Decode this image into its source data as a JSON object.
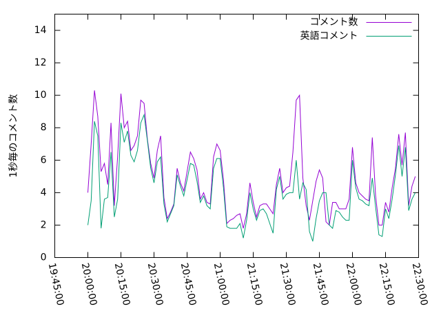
{
  "chart_data": {
    "type": "line",
    "ylabel": "1秒毎のコメント数",
    "x": [
      "20:00:00",
      "20:01:30",
      "20:03:00",
      "20:04:30",
      "20:06:00",
      "20:07:30",
      "20:09:00",
      "20:10:30",
      "20:12:00",
      "20:13:30",
      "20:15:00",
      "20:16:30",
      "20:18:00",
      "20:19:30",
      "20:21:00",
      "20:22:30",
      "20:24:00",
      "20:25:30",
      "20:27:00",
      "20:28:30",
      "20:30:00",
      "20:31:30",
      "20:33:00",
      "20:34:30",
      "20:36:00",
      "20:37:30",
      "20:39:00",
      "20:40:30",
      "20:42:00",
      "20:43:30",
      "20:45:00",
      "20:46:30",
      "20:48:00",
      "20:49:30",
      "20:51:00",
      "20:52:30",
      "20:54:00",
      "20:55:30",
      "20:57:00",
      "20:58:30",
      "21:00:00",
      "21:01:30",
      "21:03:00",
      "21:04:30",
      "21:06:00",
      "21:07:30",
      "21:09:00",
      "21:10:30",
      "21:12:00",
      "21:13:30",
      "21:15:00",
      "21:16:30",
      "21:18:00",
      "21:19:30",
      "21:21:00",
      "21:22:30",
      "21:24:00",
      "21:25:30",
      "21:27:00",
      "21:28:30",
      "21:30:00",
      "21:31:30",
      "21:33:00",
      "21:34:30",
      "21:36:00",
      "21:37:30",
      "21:39:00",
      "21:40:30",
      "21:42:00",
      "21:43:30",
      "21:45:00",
      "21:46:30",
      "21:48:00",
      "21:49:30",
      "21:51:00",
      "21:52:30",
      "21:54:00",
      "21:55:30",
      "21:57:00",
      "21:58:30",
      "22:00:00",
      "22:01:30",
      "22:03:00",
      "22:04:30",
      "22:06:00",
      "22:07:30",
      "22:09:00",
      "22:10:30",
      "22:12:00",
      "22:13:30",
      "22:15:00",
      "22:16:30",
      "22:18:00",
      "22:19:30",
      "22:21:00",
      "22:22:30",
      "22:24:00",
      "22:25:30",
      "22:27:00",
      "22:28:30"
    ],
    "series": [
      {
        "name": "コメント数",
        "color": "#9400d3",
        "values": [
          4.0,
          7.0,
          10.3,
          8.7,
          5.3,
          5.8,
          4.5,
          8.3,
          3.2,
          6.2,
          10.1,
          8.0,
          8.4,
          6.6,
          6.9,
          7.5,
          9.7,
          9.5,
          7.3,
          5.8,
          4.9,
          6.6,
          7.5,
          3.7,
          2.4,
          2.8,
          3.3,
          5.5,
          4.6,
          4.1,
          5.3,
          6.5,
          6.1,
          5.4,
          3.6,
          4.0,
          3.4,
          3.3,
          6.2,
          7.0,
          6.6,
          4.8,
          2.1,
          2.3,
          2.4,
          2.6,
          2.7,
          1.8,
          2.7,
          4.6,
          3.4,
          2.5,
          3.2,
          3.3,
          3.3,
          3.0,
          2.7,
          4.5,
          5.5,
          4.0,
          4.3,
          4.4,
          6.5,
          9.7,
          10.0,
          4.9,
          3.2,
          2.3,
          3.5,
          4.7,
          5.4,
          4.9,
          2.2,
          2.0,
          3.4,
          3.4,
          3.0,
          3.0,
          3.0,
          3.6,
          6.8,
          4.6,
          4.0,
          3.8,
          3.6,
          3.5,
          7.4,
          3.8,
          2.0,
          2.0,
          3.4,
          2.8,
          4.3,
          5.5,
          7.6,
          5.7,
          7.7,
          3.2,
          4.4,
          5.0
        ]
      },
      {
        "name": "英語コメント",
        "color": "#009e73",
        "values": [
          2.0,
          3.5,
          8.4,
          7.5,
          1.8,
          3.6,
          3.7,
          6.5,
          2.5,
          3.6,
          8.3,
          7.1,
          7.8,
          6.3,
          5.9,
          6.6,
          8.3,
          8.8,
          7.2,
          5.5,
          4.6,
          5.9,
          6.2,
          3.3,
          2.2,
          2.7,
          3.2,
          5.1,
          4.4,
          3.8,
          4.8,
          5.8,
          5.7,
          4.7,
          3.4,
          3.8,
          3.2,
          3.0,
          5.5,
          6.1,
          6.1,
          4.3,
          1.9,
          1.8,
          1.8,
          1.8,
          2.1,
          1.2,
          2.3,
          4.0,
          3.0,
          2.3,
          2.9,
          3.0,
          2.7,
          2.1,
          1.5,
          4.2,
          5.0,
          3.6,
          3.9,
          4.0,
          4.0,
          6.0,
          3.6,
          4.6,
          4.2,
          1.6,
          1.0,
          2.4,
          3.5,
          4.0,
          4.0,
          2.0,
          1.8,
          2.9,
          2.8,
          2.5,
          2.3,
          2.3,
          6.0,
          4.3,
          3.6,
          3.5,
          3.3,
          3.2,
          4.9,
          3.1,
          1.4,
          1.3,
          3.0,
          2.4,
          3.6,
          5.1,
          6.9,
          5.0,
          6.8,
          2.9,
          3.6,
          4.0
        ]
      }
    ],
    "xlim": [
      "19:45:00",
      "22:30:00"
    ],
    "xticks": [
      "19:45:00",
      "20:00:00",
      "20:15:00",
      "20:30:00",
      "20:45:00",
      "21:00:00",
      "21:15:00",
      "21:30:00",
      "21:45:00",
      "22:00:00",
      "22:15:00",
      "22:30:00"
    ],
    "ylim": [
      0,
      15
    ],
    "yticks": [
      0,
      2,
      4,
      6,
      8,
      10,
      12,
      14
    ],
    "legend": "top-right"
  }
}
